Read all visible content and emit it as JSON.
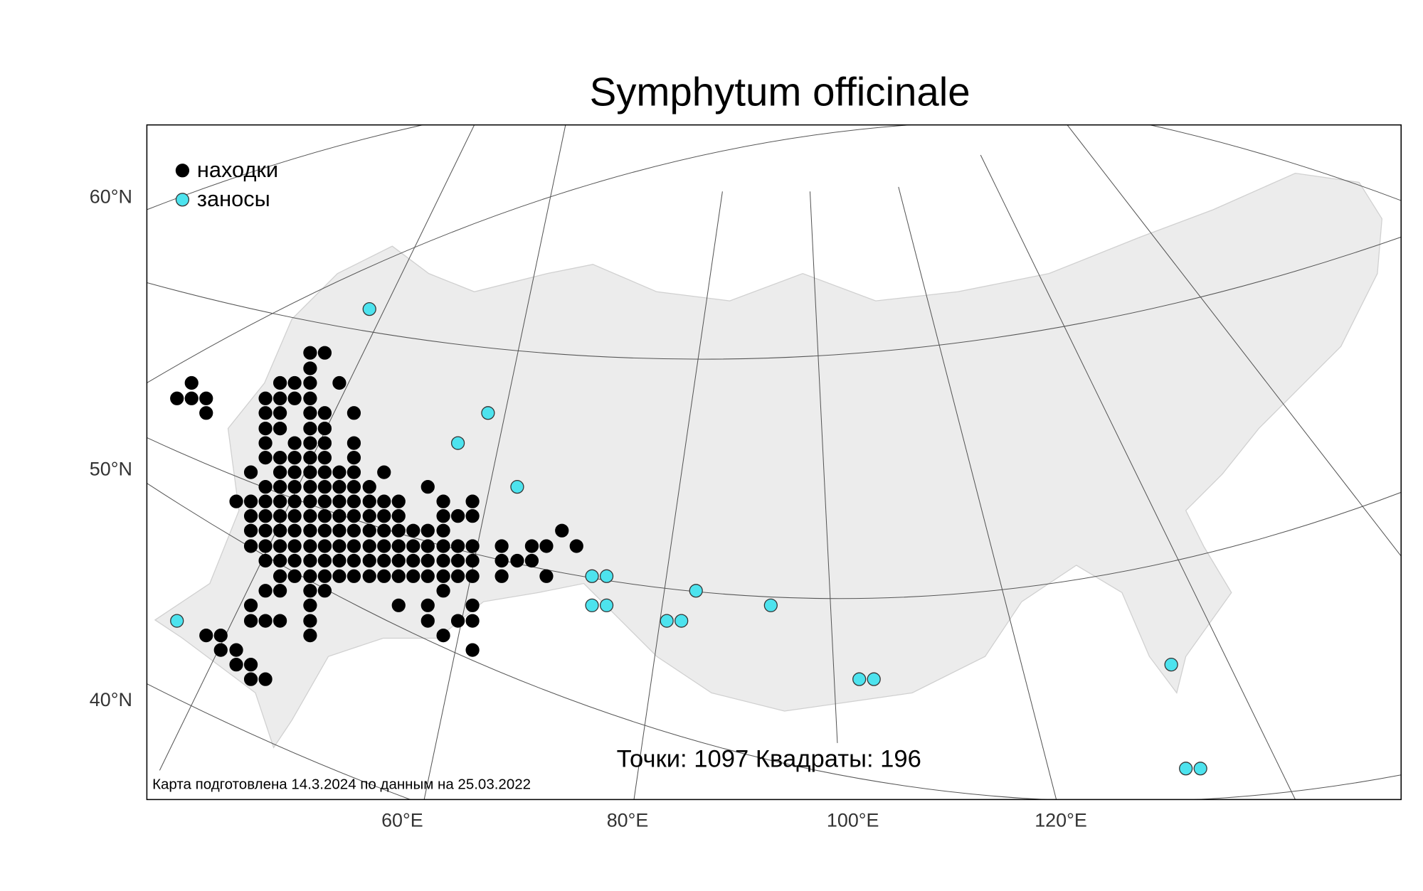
{
  "title": "Symphytum officinale",
  "legend": [
    {
      "label": "находки",
      "color": "#000000"
    },
    {
      "label": "заносы",
      "color": "#4de3ee"
    }
  ],
  "lat_labels": [
    "60°N",
    "50°N",
    "40°N"
  ],
  "lon_labels": [
    "60°E",
    "80°E",
    "100°E",
    "120°E"
  ],
  "stats": "Точки: 1097 Квадраты: 196",
  "credit": "Карта подготовлена 14.3.2024 по данным на 25.03.2022"
}
